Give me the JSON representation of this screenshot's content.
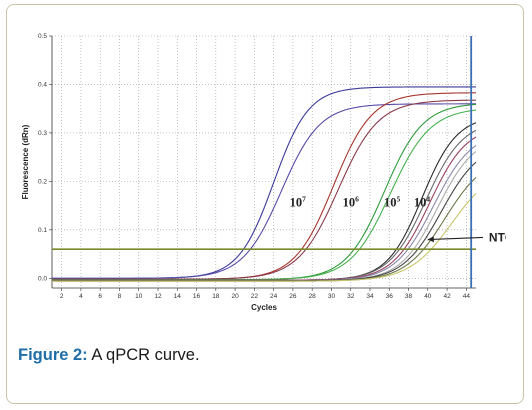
{
  "figure": {
    "caption_label": "Figure 2:",
    "caption_text": " A qPCR curve."
  },
  "chart_data": {
    "type": "line",
    "xlabel": "Cycles",
    "ylabel": "Fluorescence (dRn)",
    "xlim": [
      1,
      45
    ],
    "ylim": [
      -0.02,
      0.5
    ],
    "x_ticks": [
      2,
      4,
      6,
      8,
      10,
      12,
      14,
      16,
      18,
      20,
      22,
      24,
      26,
      28,
      30,
      32,
      34,
      36,
      38,
      40,
      42,
      44
    ],
    "y_ticks": [
      0.0,
      0.1,
      0.2,
      0.3,
      0.4,
      0.5
    ],
    "y_tick_labels": [
      "0.0",
      "0.1",
      "0.2",
      "0.3",
      "0.4",
      "0.5"
    ],
    "grid": "dotted",
    "threshold": {
      "y": 0.06,
      "color": "#7a8a2a"
    },
    "vertical_marker": {
      "x": 44.5,
      "color": "#3a6fb5"
    },
    "series": [
      {
        "color": "#3b3b9a",
        "ct": 24.0,
        "k": 0.55,
        "plateau": 0.395,
        "offset": 0.0
      },
      {
        "color": "#5a4aa8",
        "ct": 24.8,
        "k": 0.5,
        "plateau": 0.36,
        "offset": 0.0
      },
      {
        "color": "#a4362c",
        "ct": 30.2,
        "k": 0.5,
        "plateau": 0.385,
        "offset": -0.002
      },
      {
        "color": "#8a3a4a",
        "ct": 30.7,
        "k": 0.48,
        "plateau": 0.37,
        "offset": -0.002
      },
      {
        "color": "#2e9a3a",
        "ct": 35.5,
        "k": 0.5,
        "plateau": 0.365,
        "offset": -0.003
      },
      {
        "color": "#46b04e",
        "ct": 36.1,
        "k": 0.48,
        "plateau": 0.355,
        "offset": -0.003
      },
      {
        "color": "#2a2a2a",
        "ct": 39.4,
        "k": 0.55,
        "plateau": 0.34,
        "offset": -0.004
      },
      {
        "color": "#6a6a6a",
        "ct": 39.8,
        "k": 0.52,
        "plateau": 0.33,
        "offset": -0.004
      },
      {
        "color": "#9a4060",
        "ct": 40.2,
        "k": 0.52,
        "plateau": 0.32,
        "offset": -0.004
      },
      {
        "color": "#8888aa",
        "ct": 40.6,
        "k": 0.5,
        "plateau": 0.31,
        "offset": -0.005
      },
      {
        "color": "#aaaaaa",
        "ct": 41.0,
        "k": 0.52,
        "plateau": 0.3,
        "offset": -0.005
      },
      {
        "color": "#444444",
        "ct": 41.4,
        "k": 0.5,
        "plateau": 0.285,
        "offset": -0.005
      },
      {
        "color": "#6a7a4a",
        "ct": 41.8,
        "k": 0.48,
        "plateau": 0.26,
        "offset": -0.006
      },
      {
        "color": "#c9c46a",
        "ct": 42.5,
        "k": 0.45,
        "plateau": 0.24,
        "offset": -0.006
      }
    ],
    "annotations": [
      {
        "base": "10",
        "exp": "7",
        "x": 26.5,
        "y": 0.148
      },
      {
        "base": "10",
        "exp": "6",
        "x": 32.0,
        "y": 0.148
      },
      {
        "base": "10",
        "exp": "5",
        "x": 36.3,
        "y": 0.148
      },
      {
        "base": "10",
        "exp": "4",
        "x": 39.4,
        "y": 0.148
      }
    ],
    "ntc": {
      "label": "NTC",
      "text_x": 48.0,
      "text_y": 0.072,
      "arrow_to_x": 40.0,
      "arrow_to_y": 0.08
    }
  }
}
